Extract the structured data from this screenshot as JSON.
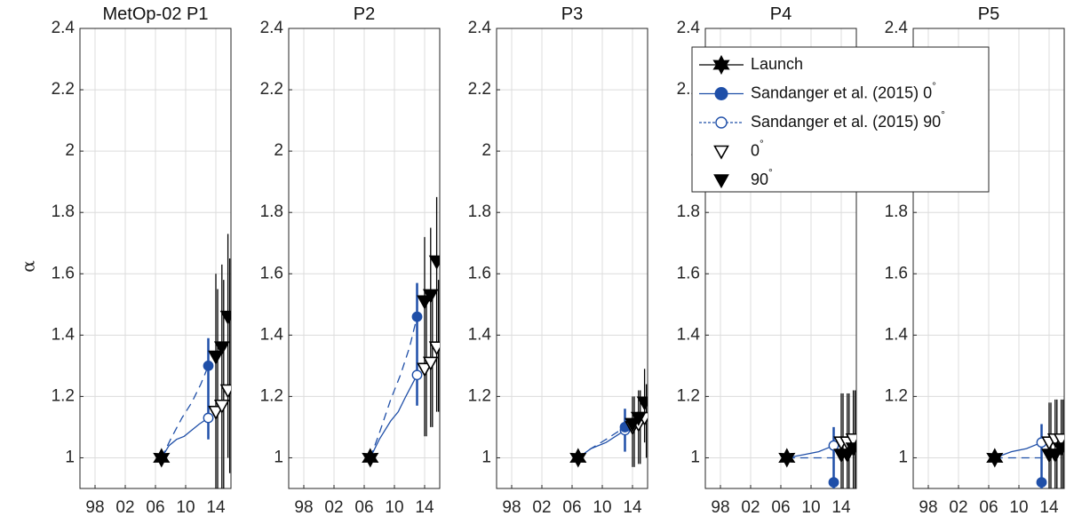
{
  "chart_data": {
    "type": "scatter",
    "ylabel": "α",
    "ylim": [
      0.9,
      2.4
    ],
    "yticks": [
      "1",
      "1.2",
      "1.4",
      "1.6",
      "1.8",
      "2",
      "2.2",
      "2.4"
    ],
    "xlim": [
      1996,
      2016
    ],
    "xticks": [
      {
        "value": 1998,
        "label": "98"
      },
      {
        "value": 2002,
        "label": "02"
      },
      {
        "value": 2006,
        "label": "06"
      },
      {
        "value": 2010,
        "label": "10"
      },
      {
        "value": 2014,
        "label": "14"
      }
    ],
    "grid": true,
    "legend": {
      "placement": "top-right, over panels P4–P5",
      "entries": [
        {
          "key": "launch",
          "label": "Launch",
          "degree": ""
        },
        {
          "key": "s0",
          "label": "Sandanger et al. (2015) 0",
          "degree": "°"
        },
        {
          "key": "s90",
          "label": "Sandanger et al. (2015) 90",
          "degree": "°"
        },
        {
          "key": "t0",
          "label": "0",
          "degree": "°"
        },
        {
          "key": "t90",
          "label": "90",
          "degree": "°"
        }
      ]
    },
    "colors": {
      "sandanger": "#1f4fa8",
      "black": "#000000",
      "grid": "#dcdcdc"
    },
    "panels": [
      {
        "title": "MetOp-02 P1",
        "launch": {
          "x": 2006.8,
          "y": 1.0
        },
        "curve0": [
          [
            2006.8,
            1.0
          ],
          [
            2007.8,
            1.04
          ],
          [
            2008.8,
            1.06
          ],
          [
            2009.8,
            1.07
          ],
          [
            2010.8,
            1.09
          ],
          [
            2011.8,
            1.11
          ],
          [
            2013.0,
            1.13
          ]
        ],
        "curve90": [
          [
            2006.8,
            1.0
          ],
          [
            2008.0,
            1.06
          ],
          [
            2009.5,
            1.13
          ],
          [
            2010.8,
            1.18
          ],
          [
            2012.0,
            1.24
          ],
          [
            2013.0,
            1.3
          ]
        ],
        "s0": {
          "x": 2013.0,
          "y": 1.13,
          "lo": null,
          "hi": null
        },
        "s90": {
          "x": 2013.0,
          "y": 1.3,
          "lo": 1.06,
          "hi": 1.39
        },
        "t0": [
          {
            "x": 2014.0,
            "y": 1.15,
            "lo": 0.9,
            "hi": 1.55
          },
          {
            "x": 2014.8,
            "y": 1.17,
            "lo": 0.9,
            "hi": 1.58
          },
          {
            "x": 2015.6,
            "y": 1.22,
            "lo": 0.95,
            "hi": 1.65
          }
        ],
        "t90": [
          {
            "x": 2014.0,
            "y": 1.33,
            "lo": 0.9,
            "hi": 1.6
          },
          {
            "x": 2014.8,
            "y": 1.36,
            "lo": 0.9,
            "hi": 1.63
          },
          {
            "x": 2015.6,
            "y": 1.46,
            "lo": 1.0,
            "hi": 1.73
          }
        ]
      },
      {
        "title": "P2",
        "launch": {
          "x": 2006.8,
          "y": 1.0
        },
        "curve0": [
          [
            2006.8,
            1.0
          ],
          [
            2008.0,
            1.06
          ],
          [
            2009.5,
            1.12
          ],
          [
            2010.5,
            1.15
          ],
          [
            2011.5,
            1.2
          ],
          [
            2013.0,
            1.27
          ]
        ],
        "curve90": [
          [
            2006.8,
            1.0
          ],
          [
            2008.0,
            1.08
          ],
          [
            2009.5,
            1.19
          ],
          [
            2010.8,
            1.27
          ],
          [
            2012.0,
            1.36
          ],
          [
            2013.0,
            1.46
          ]
        ],
        "s0": {
          "x": 2013.0,
          "y": 1.27,
          "lo": null,
          "hi": null
        },
        "s90": {
          "x": 2013.0,
          "y": 1.46,
          "lo": 1.17,
          "hi": 1.57
        },
        "t0": [
          {
            "x": 2014.0,
            "y": 1.29,
            "lo": 1.07,
            "hi": 1.5
          },
          {
            "x": 2014.8,
            "y": 1.31,
            "lo": 1.1,
            "hi": 1.53
          },
          {
            "x": 2015.6,
            "y": 1.36,
            "lo": 1.15,
            "hi": 1.58
          }
        ],
        "t90": [
          {
            "x": 2014.0,
            "y": 1.51,
            "lo": 1.07,
            "hi": 1.72
          },
          {
            "x": 2014.8,
            "y": 1.53,
            "lo": 1.1,
            "hi": 1.75
          },
          {
            "x": 2015.6,
            "y": 1.64,
            "lo": 1.15,
            "hi": 1.85
          }
        ]
      },
      {
        "title": "P3",
        "launch": {
          "x": 2006.8,
          "y": 1.0
        },
        "curve0": [
          [
            2006.8,
            1.0
          ],
          [
            2008.5,
            1.03
          ],
          [
            2010.5,
            1.05
          ],
          [
            2013.0,
            1.09
          ]
        ],
        "curve90": [
          [
            2006.8,
            1.0
          ],
          [
            2008.5,
            1.03
          ],
          [
            2010.5,
            1.06
          ],
          [
            2013.0,
            1.1
          ]
        ],
        "s0": {
          "x": 2013.0,
          "y": 1.09,
          "lo": null,
          "hi": null
        },
        "s90": {
          "x": 2013.0,
          "y": 1.1,
          "lo": 1.02,
          "hi": 1.16
        },
        "t0": [
          {
            "x": 2014.0,
            "y": 1.1,
            "lo": 0.97,
            "hi": 1.2
          },
          {
            "x": 2014.8,
            "y": 1.11,
            "lo": 0.98,
            "hi": 1.22
          },
          {
            "x": 2015.6,
            "y": 1.13,
            "lo": 1.0,
            "hi": 1.24
          }
        ],
        "t90": [
          {
            "x": 2014.0,
            "y": 1.11,
            "lo": 0.97,
            "hi": 1.2
          },
          {
            "x": 2014.8,
            "y": 1.13,
            "lo": 0.98,
            "hi": 1.22
          },
          {
            "x": 2015.6,
            "y": 1.18,
            "lo": 1.05,
            "hi": 1.29
          }
        ]
      },
      {
        "title": "P4",
        "launch": {
          "x": 2006.8,
          "y": 1.0
        },
        "curve0": [
          [
            2006.8,
            1.0
          ],
          [
            2009.0,
            1.01
          ],
          [
            2011.0,
            1.02
          ],
          [
            2013.0,
            1.04
          ]
        ],
        "curve90": [
          [
            2006.8,
            1.0
          ],
          [
            2009.0,
            1.0
          ],
          [
            2011.0,
            1.0
          ],
          [
            2013.0,
            1.0
          ]
        ],
        "s0": {
          "x": 2013.0,
          "y": 1.04,
          "lo": null,
          "hi": null
        },
        "s90": {
          "x": 2013.0,
          "y": 0.92,
          "lo": 0.9,
          "hi": 1.1
        },
        "t0": [
          {
            "x": 2014.0,
            "y": 1.05,
            "lo": 0.9,
            "hi": 1.21
          },
          {
            "x": 2014.8,
            "y": 1.05,
            "lo": 0.9,
            "hi": 1.21
          },
          {
            "x": 2015.6,
            "y": 1.06,
            "lo": 0.9,
            "hi": 1.22
          }
        ],
        "t90": [
          {
            "x": 2014.0,
            "y": 1.01,
            "lo": 0.9,
            "hi": 1.21
          },
          {
            "x": 2014.8,
            "y": 1.01,
            "lo": 0.9,
            "hi": 1.21
          },
          {
            "x": 2015.6,
            "y": 1.03,
            "lo": 0.9,
            "hi": 1.22
          }
        ]
      },
      {
        "title": "P5",
        "launch": {
          "x": 2006.8,
          "y": 1.0
        },
        "curve0": [
          [
            2006.8,
            1.0
          ],
          [
            2009.0,
            1.02
          ],
          [
            2011.0,
            1.03
          ],
          [
            2013.0,
            1.05
          ]
        ],
        "curve90": [
          [
            2006.8,
            1.0
          ],
          [
            2009.0,
            1.0
          ],
          [
            2011.0,
            1.0
          ],
          [
            2013.0,
            1.0
          ]
        ],
        "s0": {
          "x": 2013.0,
          "y": 1.05,
          "lo": null,
          "hi": null
        },
        "s90": {
          "x": 2013.0,
          "y": 0.92,
          "lo": 0.9,
          "hi": 1.11
        },
        "t0": [
          {
            "x": 2014.0,
            "y": 1.05,
            "lo": 0.9,
            "hi": 1.18
          },
          {
            "x": 2014.8,
            "y": 1.06,
            "lo": 0.9,
            "hi": 1.19
          },
          {
            "x": 2015.6,
            "y": 1.06,
            "lo": 0.9,
            "hi": 1.19
          }
        ],
        "t90": [
          {
            "x": 2014.0,
            "y": 1.01,
            "lo": 0.9,
            "hi": 1.18
          },
          {
            "x": 2014.8,
            "y": 1.01,
            "lo": 0.9,
            "hi": 1.19
          },
          {
            "x": 2015.6,
            "y": 1.03,
            "lo": 0.9,
            "hi": 1.19
          }
        ]
      }
    ]
  }
}
